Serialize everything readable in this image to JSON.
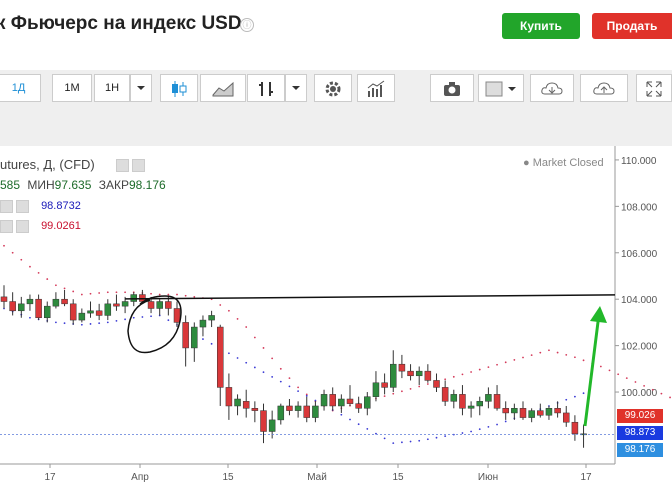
{
  "header": {
    "title": "к Фьючерс на индекс USD",
    "info_icon": "ⓘ",
    "buy_label": "Купить",
    "sell_label": "Продать"
  },
  "toolbar": {
    "interval_1d": "1Д",
    "interval_1m": "1М",
    "interval_1h": "1Н",
    "active_interval": "1Д"
  },
  "legend": {
    "name": "utures, Д, (CFD)",
    "open_partial": "585",
    "low_label": "МИН",
    "low_value": "97.635",
    "close_label": "ЗАКР",
    "close_value": "98.176",
    "indicators": [
      {
        "value": "98.8732",
        "color": "#1a1ab8"
      },
      {
        "value": "99.0261",
        "color": "#c8102e"
      }
    ],
    "market_status": "● Market Closed"
  },
  "price_axis": {
    "ticks": [
      "110.000",
      "108.000",
      "106.000",
      "104.000",
      "102.000",
      "100.000"
    ]
  },
  "time_axis": {
    "ticks": [
      "17",
      "Апр",
      "15",
      "Май",
      "15",
      "Июн",
      "17"
    ]
  },
  "price_boxes": [
    {
      "value": "99.026",
      "color": "#e0322a"
    },
    {
      "value": "98.873",
      "color": "#1a3ae0"
    },
    {
      "value": "98.176",
      "color": "#2e8fe0"
    }
  ],
  "chart_data": {
    "type": "candlestick",
    "y_range": [
      96.9,
      110.6
    ],
    "y_ticks": [
      110,
      108,
      106,
      104,
      102,
      100
    ],
    "up_color": "#2e8b3e",
    "down_color": "#d9383a",
    "candles": [
      [
        104.1,
        104.6,
        103.6,
        103.9
      ],
      [
        103.9,
        104.3,
        103.3,
        103.5
      ],
      [
        103.5,
        104.1,
        103.2,
        103.8
      ],
      [
        103.8,
        104.2,
        103.5,
        104.0
      ],
      [
        104.0,
        104.2,
        103.1,
        103.2
      ],
      [
        103.2,
        103.9,
        103.0,
        103.7
      ],
      [
        103.7,
        104.3,
        103.6,
        104.0
      ],
      [
        104.0,
        104.4,
        103.7,
        103.8
      ],
      [
        103.8,
        104.0,
        102.9,
        103.1
      ],
      [
        103.1,
        103.6,
        103.0,
        103.4
      ],
      [
        103.4,
        103.9,
        103.2,
        103.5
      ],
      [
        103.5,
        103.8,
        103.1,
        103.3
      ],
      [
        103.3,
        104.0,
        103.1,
        103.8
      ],
      [
        103.8,
        104.2,
        103.5,
        103.7
      ],
      [
        103.7,
        104.1,
        103.4,
        103.9
      ],
      [
        103.9,
        104.3,
        103.7,
        104.2
      ],
      [
        104.2,
        104.4,
        103.8,
        103.9
      ],
      [
        103.9,
        104.1,
        103.4,
        103.6
      ],
      [
        103.6,
        104.0,
        103.3,
        103.9
      ],
      [
        103.9,
        104.1,
        103.3,
        103.6
      ],
      [
        103.6,
        103.9,
        102.8,
        103.0
      ],
      [
        103.0,
        103.3,
        101.1,
        101.9
      ],
      [
        101.9,
        103.0,
        101.3,
        102.8
      ],
      [
        102.8,
        103.3,
        102.4,
        103.1
      ],
      [
        103.1,
        103.5,
        102.8,
        103.3
      ],
      [
        102.8,
        102.9,
        99.4,
        100.2
      ],
      [
        100.2,
        100.8,
        98.8,
        99.4
      ],
      [
        99.4,
        99.9,
        99.0,
        99.7
      ],
      [
        99.6,
        100.1,
        98.9,
        99.3
      ],
      [
        99.3,
        99.6,
        98.7,
        99.2
      ],
      [
        99.2,
        99.5,
        97.8,
        98.3
      ],
      [
        98.3,
        99.2,
        98.0,
        98.8
      ],
      [
        98.8,
        99.5,
        98.6,
        99.4
      ],
      [
        99.4,
        99.7,
        99.0,
        99.2
      ],
      [
        99.2,
        99.6,
        98.9,
        99.4
      ],
      [
        99.4,
        99.8,
        98.7,
        98.9
      ],
      [
        98.9,
        99.6,
        98.7,
        99.4
      ],
      [
        99.4,
        100.1,
        99.2,
        99.9
      ],
      [
        99.9,
        100.2,
        99.2,
        99.4
      ],
      [
        99.4,
        99.9,
        99.1,
        99.7
      ],
      [
        99.7,
        100.3,
        99.4,
        99.5
      ],
      [
        99.5,
        99.8,
        99.1,
        99.3
      ],
      [
        99.3,
        100.0,
        99.0,
        99.8
      ],
      [
        99.8,
        100.9,
        99.6,
        100.4
      ],
      [
        100.4,
        100.8,
        99.9,
        100.2
      ],
      [
        100.2,
        101.8,
        100.0,
        101.2
      ],
      [
        101.2,
        101.6,
        100.6,
        100.9
      ],
      [
        100.9,
        101.2,
        100.5,
        100.7
      ],
      [
        100.7,
        101.1,
        100.3,
        100.9
      ],
      [
        100.9,
        101.2,
        100.4,
        100.5
      ],
      [
        100.5,
        100.8,
        100.0,
        100.2
      ],
      [
        100.2,
        100.5,
        99.4,
        99.6
      ],
      [
        99.6,
        100.1,
        99.3,
        99.9
      ],
      [
        99.9,
        100.3,
        99.0,
        99.3
      ],
      [
        99.3,
        99.6,
        98.9,
        99.4
      ],
      [
        99.4,
        99.8,
        99.0,
        99.6
      ],
      [
        99.6,
        100.2,
        99.3,
        99.9
      ],
      [
        99.9,
        100.3,
        99.2,
        99.3
      ],
      [
        99.3,
        99.6,
        98.8,
        99.1
      ],
      [
        99.1,
        99.5,
        98.8,
        99.3
      ],
      [
        99.3,
        99.6,
        98.8,
        98.9
      ],
      [
        98.9,
        99.3,
        98.7,
        99.2
      ],
      [
        99.2,
        99.5,
        98.9,
        99.0
      ],
      [
        99.0,
        99.4,
        98.8,
        99.3
      ],
      [
        99.3,
        99.6,
        98.9,
        99.1
      ],
      [
        99.1,
        99.4,
        98.5,
        98.7
      ],
      [
        98.7,
        99.0,
        97.9,
        98.2
      ],
      [
        98.2,
        98.6,
        97.6,
        98.2
      ]
    ],
    "sar_red_above": [
      [
        0,
        106.3
      ],
      [
        3,
        105.4
      ],
      [
        6,
        104.6
      ],
      [
        9,
        104.2
      ],
      [
        12,
        104.3
      ],
      [
        15,
        104.3
      ],
      [
        18,
        104.2
      ],
      [
        20,
        104.2
      ],
      [
        22,
        104.1
      ],
      [
        24,
        104.0
      ],
      [
        26,
        103.5
      ],
      [
        28,
        102.8
      ],
      [
        30,
        101.9
      ],
      [
        32,
        101.0
      ],
      [
        34,
        100.2
      ],
      [
        36,
        99.6
      ],
      [
        38,
        99.2
      ],
      [
        63,
        101.8
      ],
      [
        66,
        101.5
      ],
      [
        69,
        101.1
      ],
      [
        72,
        100.6
      ],
      [
        75,
        100.1
      ],
      [
        78,
        99.6
      ],
      [
        81,
        99.2
      ],
      [
        84,
        99.0
      ]
    ],
    "sar_blue_below": [
      [
        0,
        103.6
      ],
      [
        3,
        103.2
      ],
      [
        6,
        103.0
      ],
      [
        9,
        102.9
      ],
      [
        12,
        103.0
      ],
      [
        15,
        103.2
      ],
      [
        18,
        103.3
      ],
      [
        45,
        97.8
      ],
      [
        48,
        97.9
      ],
      [
        51,
        98.1
      ],
      [
        54,
        98.3
      ],
      [
        57,
        98.6
      ],
      [
        60,
        99.0
      ],
      [
        63,
        99.4
      ],
      [
        66,
        99.8
      ],
      [
        68,
        100.1
      ]
    ],
    "horizontal_line": 104.1,
    "current_price_line": 98.176
  }
}
